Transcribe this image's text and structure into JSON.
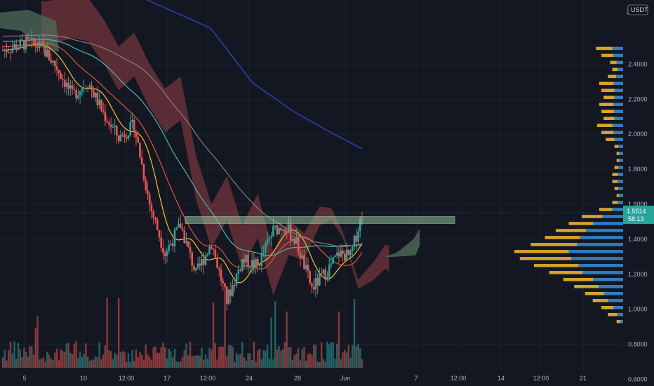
{
  "chart_data": {
    "type": "candlestick",
    "quote_currency": "USDT",
    "last_price": "1.5514",
    "countdown": "58:13",
    "y_ticks": [
      "2.4000",
      "2.2000",
      "2.0000",
      "1.8000",
      "1.6000",
      "1.4000",
      "1.2000",
      "1.0000",
      "0.8000",
      "0.6000"
    ],
    "y_tick_values": [
      2.4,
      2.2,
      2.0,
      1.8,
      1.6,
      1.4,
      1.2,
      1.0,
      0.8,
      0.6
    ],
    "y_top_tick": "2",
    "x_ticks": [
      "5",
      "10",
      "12:00",
      "17",
      "12:00",
      "24",
      "28",
      "Jun",
      "7",
      "12:00",
      "14",
      "12:00",
      "21"
    ],
    "ylim": [
      0.55,
      2.55
    ],
    "price_path": [
      {
        "t": 0,
        "v": 2.48
      },
      {
        "t": 6,
        "v": 2.52
      },
      {
        "t": 10,
        "v": 2.5
      },
      {
        "t": 14,
        "v": 2.38
      },
      {
        "t": 18,
        "v": 2.22
      },
      {
        "t": 22,
        "v": 2.3
      },
      {
        "t": 26,
        "v": 2.12
      },
      {
        "t": 30,
        "v": 1.98
      },
      {
        "t": 34,
        "v": 2.05
      },
      {
        "t": 38,
        "v": 1.6
      },
      {
        "t": 42,
        "v": 1.32
      },
      {
        "t": 46,
        "v": 1.48
      },
      {
        "t": 50,
        "v": 1.2
      },
      {
        "t": 54,
        "v": 1.38
      },
      {
        "t": 58,
        "v": 1.05
      },
      {
        "t": 62,
        "v": 1.28
      },
      {
        "t": 66,
        "v": 1.25
      },
      {
        "t": 70,
        "v": 1.45
      },
      {
        "t": 73,
        "v": 1.48
      },
      {
        "t": 76,
        "v": 1.38
      },
      {
        "t": 80,
        "v": 1.12
      },
      {
        "t": 84,
        "v": 1.22
      },
      {
        "t": 87,
        "v": 1.32
      },
      {
        "t": 90,
        "v": 1.3
      },
      {
        "t": 93,
        "v": 1.55
      }
    ],
    "resistance_zone": [
      1.49,
      1.53
    ],
    "current_price_line": 1.5514,
    "volume_profile": {
      "price_bins": [
        2.49,
        2.45,
        2.41,
        2.37,
        2.33,
        2.29,
        2.25,
        2.21,
        2.17,
        2.13,
        2.09,
        2.05,
        2.01,
        1.97,
        1.93,
        1.89,
        1.85,
        1.81,
        1.77,
        1.73,
        1.69,
        1.65,
        1.61,
        1.57,
        1.53,
        1.49,
        1.45,
        1.41,
        1.37,
        1.33,
        1.29,
        1.25,
        1.21,
        1.17,
        1.13,
        1.09,
        1.05,
        1.01,
        0.97,
        0.93
      ],
      "total": [
        0.25,
        0.2,
        0.12,
        0.1,
        0.14,
        0.22,
        0.2,
        0.18,
        0.22,
        0.2,
        0.18,
        0.24,
        0.2,
        0.16,
        0.08,
        0.06,
        0.06,
        0.08,
        0.1,
        0.1,
        0.08,
        0.06,
        0.1,
        0.22,
        0.38,
        0.5,
        0.62,
        0.72,
        0.85,
        1.0,
        0.95,
        0.82,
        0.68,
        0.55,
        0.45,
        0.35,
        0.28,
        0.2,
        0.14,
        0.06
      ],
      "buy_share": [
        0.4,
        0.45,
        0.5,
        0.5,
        0.45,
        0.4,
        0.4,
        0.45,
        0.4,
        0.42,
        0.45,
        0.4,
        0.45,
        0.5,
        0.55,
        0.6,
        0.6,
        0.55,
        0.5,
        0.5,
        0.55,
        0.6,
        0.5,
        0.45,
        0.5,
        0.55,
        0.55,
        0.55,
        0.5,
        0.5,
        0.5,
        0.5,
        0.55,
        0.5,
        0.5,
        0.5,
        0.5,
        0.45,
        0.4,
        0.4
      ]
    }
  }
}
